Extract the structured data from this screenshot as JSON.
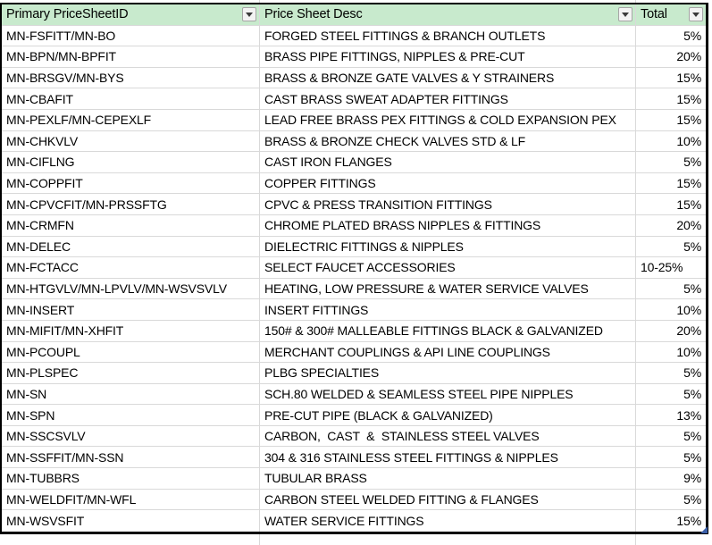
{
  "sheet": {
    "columns": [
      {
        "label": "Primary PriceSheetID",
        "filter_icon": "filter-dropdown-icon"
      },
      {
        "label": "Price Sheet Desc",
        "filter_icon": "filter-dropdown-icon"
      },
      {
        "label": "Total",
        "filter_icon": "filter-dropdown-icon"
      }
    ],
    "rows": [
      {
        "id": "MN-FSFITT/MN-BO",
        "desc": "FORGED STEEL FITTINGS & BRANCH OUTLETS",
        "total": "5%"
      },
      {
        "id": "MN-BPN/MN-BPFIT",
        "desc": "BRASS PIPE FITTINGS, NIPPLES & PRE-CUT",
        "total": "20%"
      },
      {
        "id": "MN-BRSGV/MN-BYS",
        "desc": "BRASS & BRONZE GATE VALVES & Y STRAINERS",
        "total": "15%"
      },
      {
        "id": "MN-CBAFIT",
        "desc": "CAST BRASS SWEAT ADAPTER FITTINGS",
        "total": "15%"
      },
      {
        "id": "MN-PEXLF/MN-CEPEXLF",
        "desc": "LEAD FREE BRASS PEX FITTINGS & COLD EXPANSION PEX",
        "total": "15%"
      },
      {
        "id": "MN-CHKVLV",
        "desc": "BRASS & BRONZE CHECK VALVES STD & LF",
        "total": "10%"
      },
      {
        "id": "MN-CIFLNG",
        "desc": "CAST IRON FLANGES",
        "total": "5%"
      },
      {
        "id": "MN-COPPFIT",
        "desc": "COPPER FITTINGS",
        "total": "15%"
      },
      {
        "id": "MN-CPVCFIT/MN-PRSSFTG",
        "desc": "CPVC & PRESS TRANSITION FITTINGS",
        "total": "15%"
      },
      {
        "id": "MN-CRMFN",
        "desc": "CHROME PLATED BRASS NIPPLES & FITTINGS",
        "total": "20%"
      },
      {
        "id": "MN-DELEC",
        "desc": "DIELECTRIC FITTINGS & NIPPLES",
        "total": "5%"
      },
      {
        "id": "MN-FCTACC",
        "desc": "SELECT FAUCET ACCESSORIES",
        "total": "10-25%"
      },
      {
        "id": "MN-HTGVLV/MN-LPVLV/MN-WSVSVLV",
        "desc": "HEATING, LOW PRESSURE & WATER SERVICE VALVES",
        "total": "5%"
      },
      {
        "id": "MN-INSERT",
        "desc": "INSERT FITTINGS",
        "total": "10%"
      },
      {
        "id": "MN-MIFIT/MN-XHFIT",
        "desc": "150# & 300# MALLEABLE FITTINGS BLACK & GALVANIZED",
        "total": "20%"
      },
      {
        "id": "MN-PCOUPL",
        "desc": "MERCHANT COUPLINGS & API LINE COUPLINGS",
        "total": "10%"
      },
      {
        "id": "MN-PLSPEC",
        "desc": "PLBG SPECIALTIES",
        "total": "5%"
      },
      {
        "id": "MN-SN",
        "desc": "SCH.80 WELDED & SEAMLESS STEEL PIPE NIPPLES",
        "total": "5%"
      },
      {
        "id": "MN-SPN",
        "desc": "PRE-CUT PIPE (BLACK & GALVANIZED)",
        "total": "13%"
      },
      {
        "id": "MN-SSCSVLV",
        "desc": "CARBON,  CAST  &  STAINLESS STEEL VALVES",
        "total": "5%"
      },
      {
        "id": "MN-SSFFIT/MN-SSN",
        "desc": "304 & 316 STAINLESS STEEL FITTINGS & NIPPLES",
        "total": "5%"
      },
      {
        "id": "MN-TUBBRS",
        "desc": "TUBULAR BRASS",
        "total": "9%"
      },
      {
        "id": "MN-WELDFIT/MN-WFL",
        "desc": "CARBON STEEL WELDED FITTING & FLANGES",
        "total": "5%"
      },
      {
        "id": "MN-WSVSFIT",
        "desc": "WATER SERVICE FITTINGS",
        "total": "15%"
      }
    ]
  },
  "icons": {
    "filter_dropdown": "filter-dropdown-icon",
    "selection_corner": "selection-corner-handle"
  },
  "colors": {
    "header_bg": "#c8eacd",
    "grid_line": "#d9d9d9",
    "table_border": "#000000",
    "corner_handle": "#3a5fa8"
  }
}
